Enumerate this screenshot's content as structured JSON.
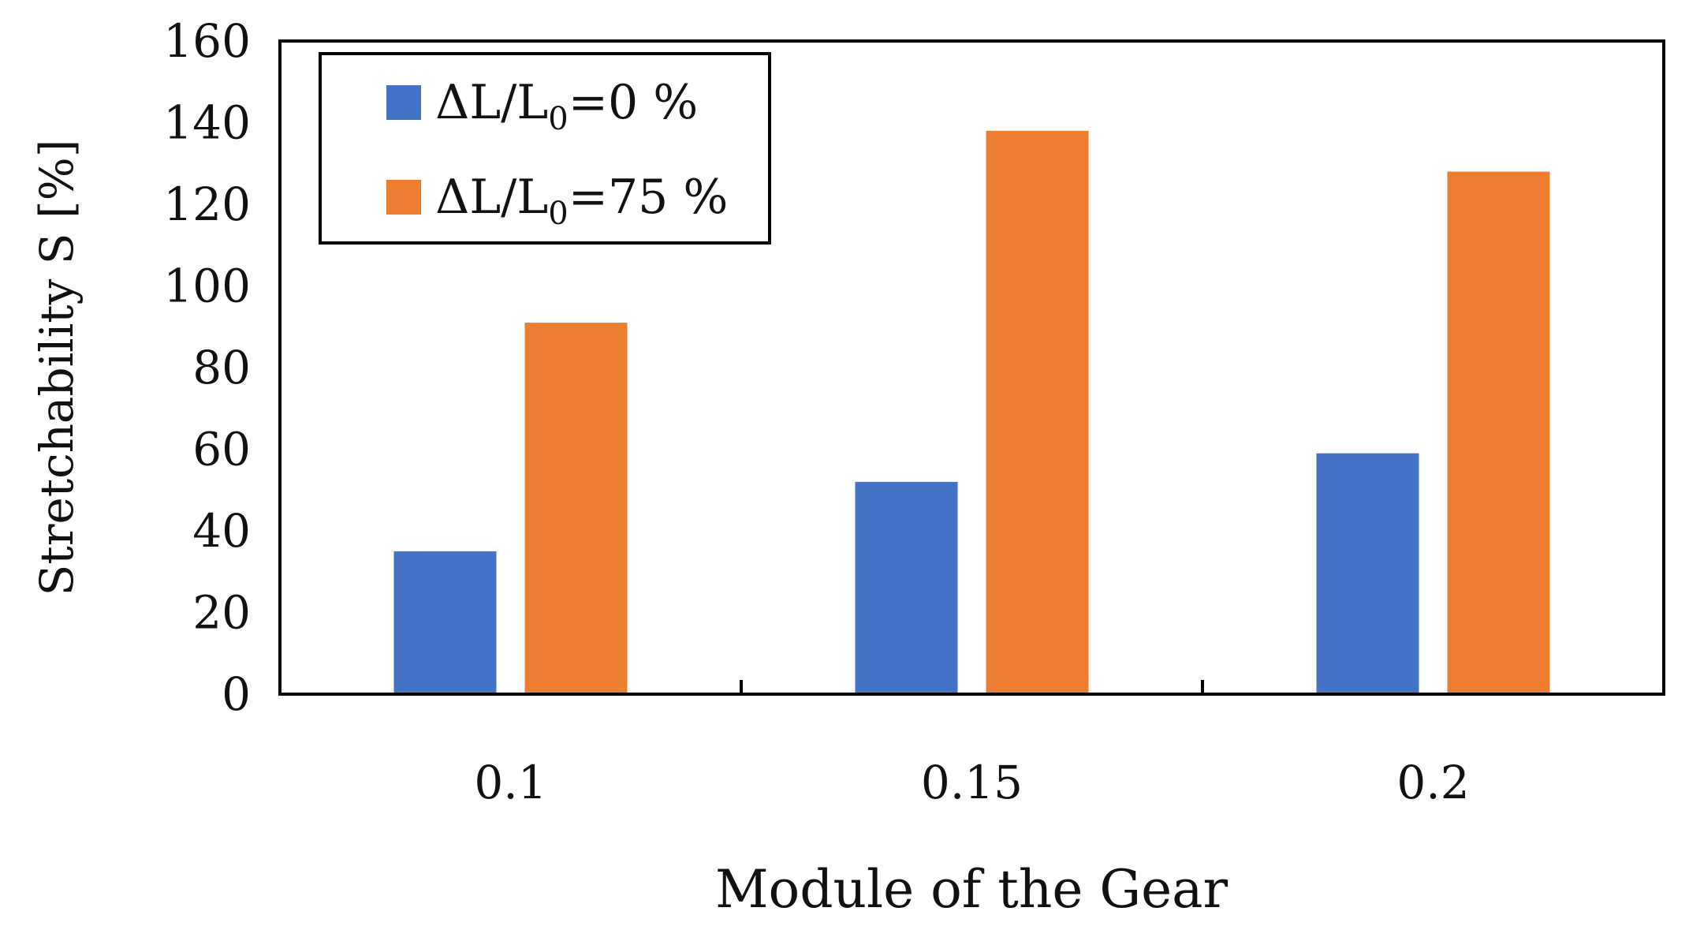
{
  "chart_data": {
    "type": "bar",
    "title": "",
    "xlabel": "Module of the Gear",
    "ylabel": "Stretchability S [%]",
    "categories": [
      "0.1",
      "0.15",
      "0.2"
    ],
    "series": [
      {
        "name": "ΔL/L0=0 %",
        "legend_main": "ΔL/L",
        "legend_sub": "0",
        "legend_tail": "=0 %",
        "color": "#4472C4",
        "values": [
          35,
          52,
          59
        ]
      },
      {
        "name": "ΔL/L0=75 %",
        "legend_main": "ΔL/L",
        "legend_sub": "0",
        "legend_tail": "=75 %",
        "color": "#ED7D31",
        "values": [
          91,
          138,
          128
        ]
      }
    ],
    "ylim": [
      0,
      160
    ],
    "yticks": [
      "0",
      "20",
      "40",
      "60",
      "80",
      "100",
      "120",
      "140",
      "160"
    ],
    "grid": false,
    "legend_position": "top-left"
  }
}
